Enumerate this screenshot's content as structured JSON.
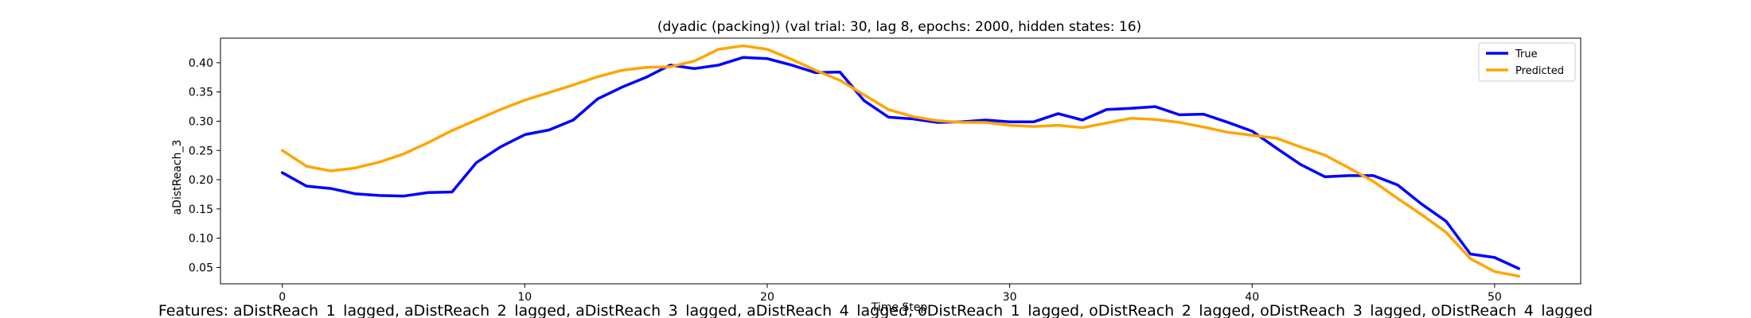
{
  "chart_data": {
    "type": "line",
    "title": "(dyadic (packing)) (val trial: 30, lag 8, epochs: 2000, hidden states: 16)",
    "xlabel": "Time Step",
    "ylabel": "aDistReach_3",
    "xlim": [
      -2.55,
      53.55
    ],
    "ylim": [
      0.022,
      0.442
    ],
    "xticks": [
      0,
      10,
      20,
      30,
      40,
      50
    ],
    "yticks": [
      0.05,
      0.1,
      0.15,
      0.2,
      0.25,
      0.3,
      0.35,
      0.4
    ],
    "grid": false,
    "legend_position": "top-right",
    "x": [
      0,
      1,
      2,
      3,
      4,
      5,
      6,
      7,
      8,
      9,
      10,
      11,
      12,
      13,
      14,
      15,
      16,
      17,
      18,
      19,
      20,
      21,
      22,
      23,
      24,
      25,
      26,
      27,
      28,
      29,
      30,
      31,
      32,
      33,
      34,
      35,
      36,
      37,
      38,
      39,
      40,
      41,
      42,
      43,
      44,
      45,
      46,
      47,
      48,
      49,
      50,
      51
    ],
    "series": [
      {
        "name": "True",
        "color": "#0000ff",
        "values": [
          0.212,
          0.189,
          0.185,
          0.176,
          0.173,
          0.172,
          0.178,
          0.179,
          0.229,
          0.256,
          0.277,
          0.285,
          0.302,
          0.338,
          0.358,
          0.375,
          0.396,
          0.39,
          0.396,
          0.409,
          0.407,
          0.396,
          0.383,
          0.384,
          0.335,
          0.307,
          0.304,
          0.298,
          0.299,
          0.302,
          0.299,
          0.299,
          0.313,
          0.302,
          0.32,
          0.322,
          0.325,
          0.311,
          0.312,
          0.298,
          0.283,
          0.254,
          0.226,
          0.205,
          0.207,
          0.207,
          0.191,
          0.158,
          0.129,
          0.073,
          0.067,
          0.048
        ]
      },
      {
        "name": "Predicted",
        "color": "#ffa500",
        "values": [
          0.25,
          0.223,
          0.215,
          0.22,
          0.23,
          0.244,
          0.263,
          0.284,
          0.302,
          0.32,
          0.336,
          0.349,
          0.362,
          0.376,
          0.387,
          0.392,
          0.393,
          0.403,
          0.423,
          0.429,
          0.423,
          0.406,
          0.387,
          0.37,
          0.345,
          0.32,
          0.308,
          0.301,
          0.298,
          0.298,
          0.293,
          0.291,
          0.293,
          0.289,
          0.297,
          0.305,
          0.303,
          0.298,
          0.29,
          0.281,
          0.276,
          0.271,
          0.256,
          0.242,
          0.22,
          0.197,
          0.168,
          0.14,
          0.11,
          0.065,
          0.043,
          0.035
        ]
      }
    ],
    "features_text": "Features: aDistReach_1_lagged, aDistReach_2_lagged, aDistReach_3_lagged, aDistReach_4_lagged, oDistReach_1_lagged, oDistReach_2_lagged, oDistReach_3_lagged, oDistReach_4_lagged"
  }
}
